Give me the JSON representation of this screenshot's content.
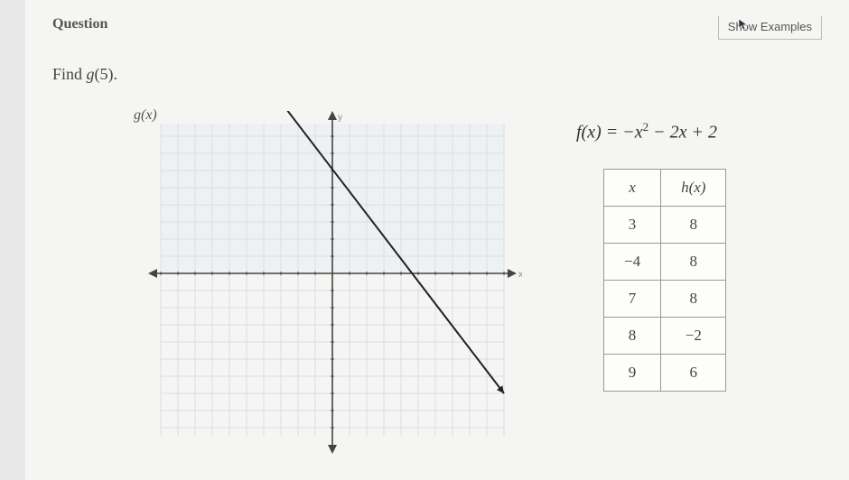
{
  "header": {
    "question_label": "Question",
    "show_examples": "Show Examples"
  },
  "prompt": {
    "text_prefix": "Find ",
    "fn": "g",
    "arg": "(5)",
    "suffix": "."
  },
  "graph": {
    "label": "g(x)",
    "y_axis_label": "y",
    "x_axis_label": "x",
    "xlim": [
      -10,
      10
    ],
    "ylim": [
      -10,
      10
    ],
    "tick_step": 1,
    "grid_color": "#d8dee4",
    "grid_region_fill": "#eef1f4",
    "axis_color": "#444444",
    "line_color": "#222222",
    "line_width": 2,
    "line_points": [
      [
        -3,
        10
      ],
      [
        10,
        -7
      ]
    ],
    "arrow_ends": true,
    "background": "#f5f5f3"
  },
  "equation": {
    "lhs": "f(x)",
    "rhs_terms": [
      "−x",
      "2",
      " − 2x + 2"
    ]
  },
  "htable": {
    "columns": [
      "x",
      "h(x)"
    ],
    "rows": [
      [
        "3",
        "8"
      ],
      [
        "−4",
        "8"
      ],
      [
        "7",
        "8"
      ],
      [
        "8",
        "−2"
      ],
      [
        "9",
        "6"
      ]
    ],
    "border_color": "#999999",
    "cell_bg": "#fdfdfc"
  }
}
